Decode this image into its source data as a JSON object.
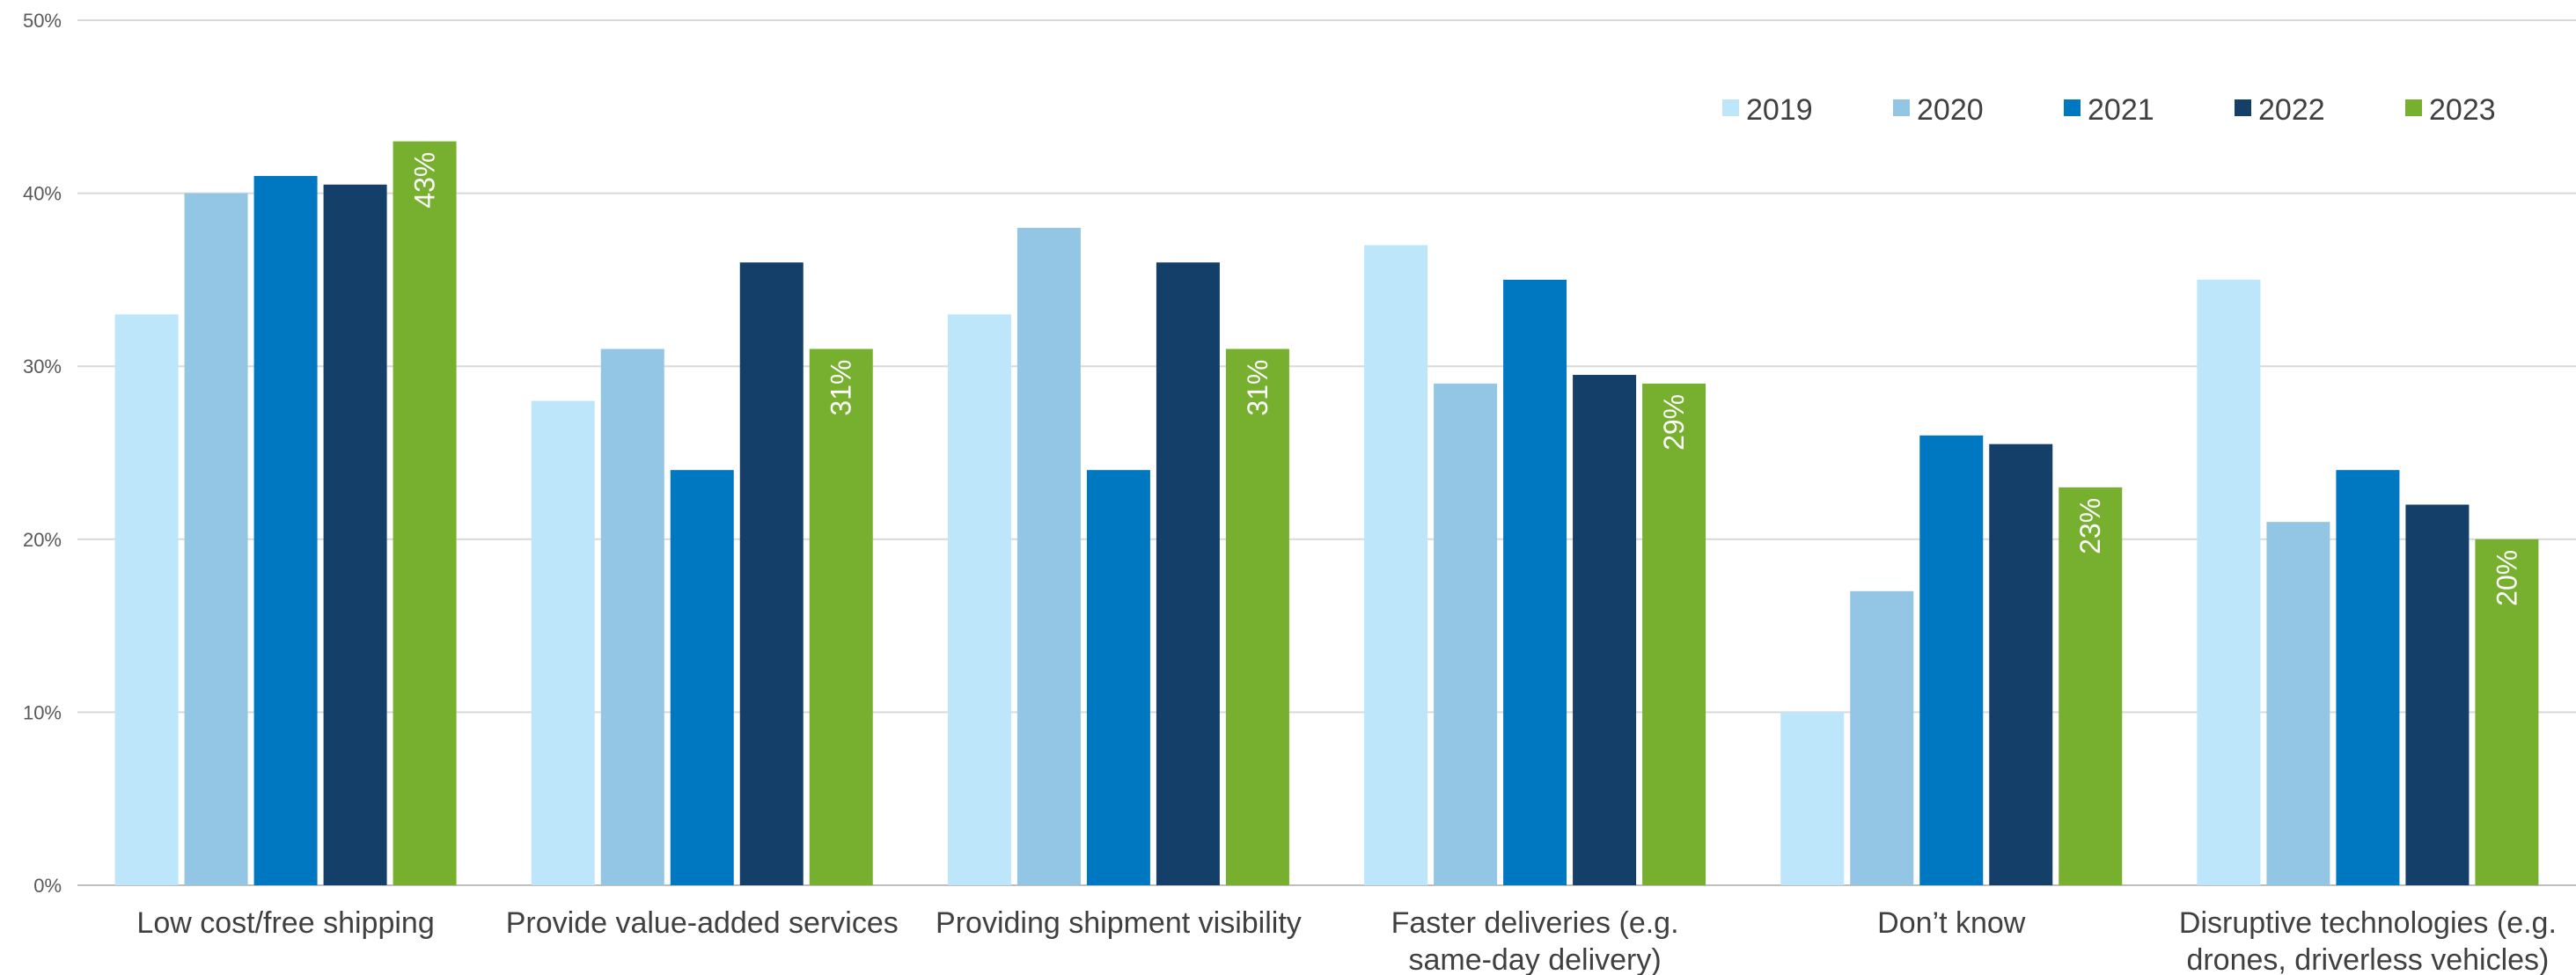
{
  "chart_data": {
    "type": "bar",
    "categories": [
      [
        "Low cost/free shipping"
      ],
      [
        "Provide value-added services"
      ],
      [
        "Providing shipment visibility"
      ],
      [
        "Faster deliveries (e.g.",
        "same-day delivery)"
      ],
      [
        "Don’t know"
      ],
      [
        "Disruptive technologies (e.g.",
        "drones, driverless vehicles)"
      ]
    ],
    "series": [
      {
        "name": "2019",
        "color": "#bde6fb",
        "values": [
          33,
          28,
          33,
          37,
          10,
          35
        ]
      },
      {
        "name": "2020",
        "color": "#93c6e5",
        "values": [
          40,
          31,
          38,
          29,
          17,
          21
        ]
      },
      {
        "name": "2021",
        "color": "#0078c1",
        "values": [
          41,
          24,
          24,
          35,
          26,
          24
        ]
      },
      {
        "name": "2022",
        "color": "#143f69",
        "values": [
          40.5,
          36,
          36,
          29.5,
          25.5,
          22
        ]
      },
      {
        "name": "2023",
        "color": "#77b02f",
        "values": [
          43,
          31,
          31,
          29,
          23,
          20
        ],
        "data_labels": [
          "43%",
          "31%",
          "31%",
          "29%",
          "23%",
          "20%"
        ]
      }
    ],
    "yticks": [
      "0%",
      "10%",
      "20%",
      "30%",
      "40%",
      "50%"
    ],
    "ylim": [
      0,
      50
    ],
    "grid": true,
    "legend_position": "top-right"
  }
}
